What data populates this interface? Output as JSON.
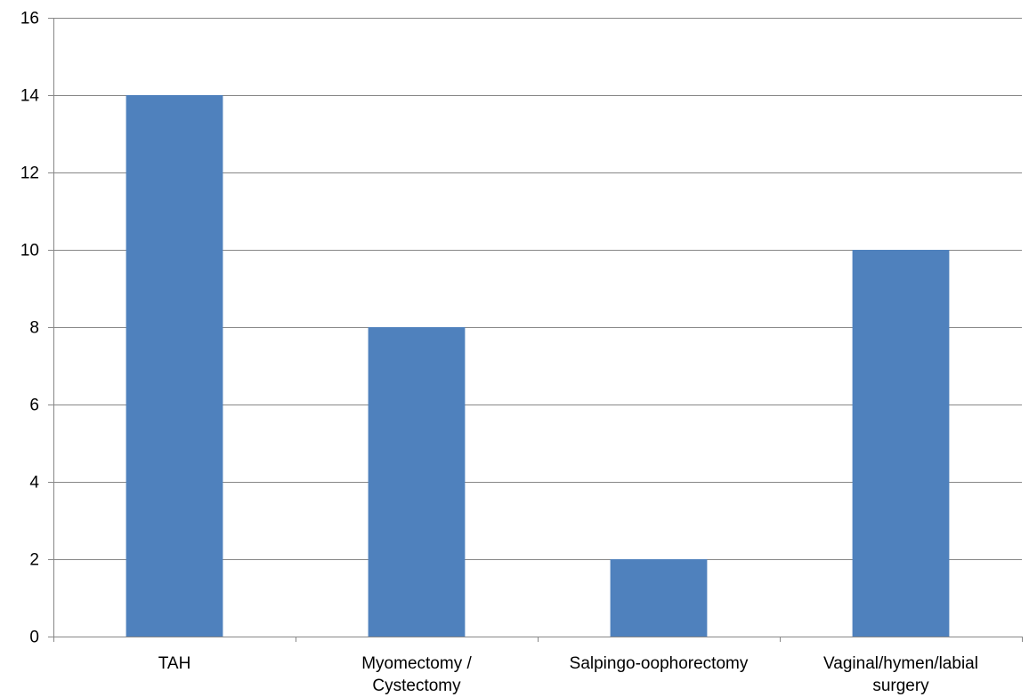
{
  "chart_data": {
    "type": "bar",
    "title": "",
    "xlabel": "",
    "ylabel": "",
    "categories": [
      "TAH",
      "Myomectomy / Cystectomy",
      "Salpingo-oophorectomy",
      "Vaginal/hymen/labial surgery"
    ],
    "category_label_lines": [
      [
        "TAH"
      ],
      [
        "Myomectomy /",
        "Cystectomy"
      ],
      [
        "Salpingo-oophorectomy"
      ],
      [
        "Vaginal/hymen/labial",
        "surgery"
      ]
    ],
    "values": [
      14,
      8,
      2,
      10
    ],
    "ylim": [
      0,
      16
    ],
    "yticks": [
      0,
      2,
      4,
      6,
      8,
      10,
      12,
      14,
      16
    ],
    "grid": true,
    "legend": "none",
    "bar_color": "#4F81BD",
    "grid_color": "#878787"
  }
}
